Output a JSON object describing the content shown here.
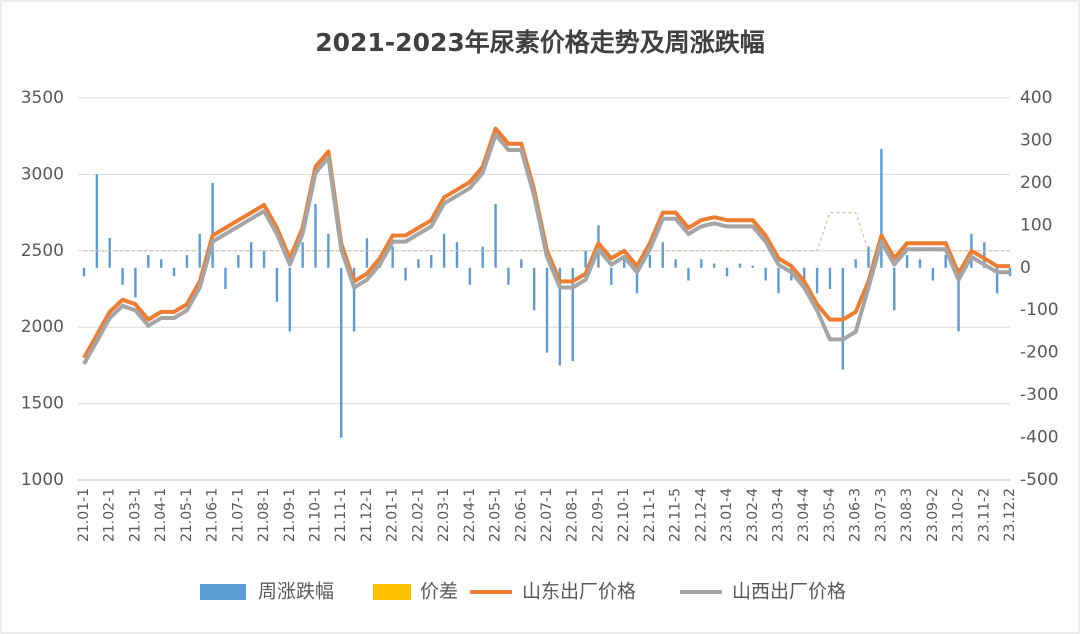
{
  "chart_data": {
    "type": "bar-line",
    "title": "2021-2023年尿素价格走势及周涨跌幅",
    "categories": [
      "21.01-1",
      null,
      "21.02-1",
      null,
      "21.03-1",
      null,
      "21.04-1",
      null,
      "21.05-1",
      null,
      "21.06-1",
      null,
      "21.07-1",
      null,
      "21.08-1",
      null,
      "21.09-1",
      null,
      "21.10-1",
      null,
      "21.11-1",
      null,
      "21.12-1",
      null,
      "22.01-1",
      null,
      "22.02-1",
      null,
      "22.03-1",
      null,
      "22.04-1",
      null,
      "22.05-1",
      null,
      "22.06-1",
      null,
      "22.07-1",
      null,
      "22.08-1",
      null,
      "22.09-1",
      null,
      "22.10-1",
      null,
      "22.11-1",
      null,
      "22.11-5",
      null,
      "22.12-4",
      null,
      "23.01-4",
      null,
      "23.02-4",
      null,
      "23.03-4",
      null,
      "23.04-4",
      null,
      "23.05-4",
      null,
      "23.06-3",
      null,
      "23.07-3",
      null,
      "23.08-3",
      null,
      "23.09-2",
      null,
      "23.10-2",
      null,
      "23.11-2",
      null,
      "23.12.2"
    ],
    "series": [
      {
        "name": "周涨跌幅",
        "type": "bar",
        "axis": "y2",
        "color": "#5b9bd5",
        "values": [
          -20,
          220,
          70,
          -40,
          -70,
          30,
          20,
          -20,
          30,
          80,
          200,
          -50,
          30,
          60,
          40,
          -80,
          -150,
          60,
          150,
          80,
          -400,
          -150,
          70,
          30,
          50,
          -30,
          20,
          30,
          80,
          60,
          -40,
          50,
          150,
          -40,
          20,
          -100,
          -200,
          -230,
          -220,
          40,
          100,
          -40,
          30,
          -60,
          30,
          60,
          20,
          -30,
          20,
          10,
          -20,
          10,
          5,
          -30,
          -60,
          -30,
          -50,
          -60,
          -50,
          -240,
          20,
          50,
          280,
          -100,
          30,
          20,
          -30,
          30,
          -150,
          80,
          60,
          -60,
          -20
        ]
      },
      {
        "name": "价差",
        "type": "line",
        "axis": "y2",
        "color": "#ffc000",
        "values": [
          40,
          40,
          40,
          40,
          40,
          40,
          40,
          40,
          40,
          40,
          40,
          40,
          40,
          40,
          40,
          40,
          40,
          40,
          40,
          40,
          40,
          40,
          40,
          40,
          40,
          40,
          40,
          40,
          40,
          40,
          40,
          40,
          40,
          40,
          40,
          40,
          40,
          40,
          40,
          40,
          40,
          40,
          40,
          40,
          40,
          40,
          40,
          40,
          40,
          40,
          40,
          40,
          40,
          40,
          40,
          40,
          40,
          40,
          130,
          130,
          130,
          40,
          40,
          40,
          40,
          40,
          40,
          40,
          40,
          40,
          40,
          40,
          40
        ]
      },
      {
        "name": "山东出厂价格",
        "type": "line",
        "color": "#ed7d31",
        "values": [
          1800,
          1950,
          2100,
          2180,
          2150,
          2050,
          2100,
          2100,
          2150,
          2300,
          2600,
          2650,
          2700,
          2750,
          2800,
          2650,
          2450,
          2650,
          3050,
          3150,
          2550,
          2300,
          2350,
          2450,
          2600,
          2600,
          2650,
          2700,
          2850,
          2900,
          2950,
          3050,
          3300,
          3200,
          3200,
          2900,
          2500,
          2300,
          2300,
          2350,
          2550,
          2450,
          2500,
          2400,
          2550,
          2750,
          2750,
          2650,
          2700,
          2720,
          2700,
          2700,
          2700,
          2600,
          2450,
          2400,
          2300,
          2150,
          2050,
          2050,
          2100,
          2300,
          2600,
          2450,
          2550,
          2550,
          2550,
          2550,
          2350,
          2500,
          2450,
          2400,
          2400
        ]
      },
      {
        "name": "山西出厂价格",
        "type": "line",
        "color": "#a5a5a5",
        "values": [
          1760,
          1910,
          2060,
          2140,
          2110,
          2010,
          2060,
          2060,
          2110,
          2260,
          2560,
          2610,
          2660,
          2710,
          2760,
          2610,
          2410,
          2610,
          3010,
          3110,
          2510,
          2260,
          2310,
          2410,
          2560,
          2560,
          2610,
          2660,
          2810,
          2860,
          2910,
          3010,
          3260,
          3160,
          3160,
          2860,
          2460,
          2260,
          2260,
          2310,
          2510,
          2410,
          2460,
          2360,
          2510,
          2710,
          2710,
          2610,
          2660,
          2680,
          2660,
          2660,
          2660,
          2560,
          2410,
          2360,
          2260,
          2110,
          1920,
          1920,
          1970,
          2260,
          2560,
          2410,
          2510,
          2510,
          2510,
          2510,
          2310,
          2460,
          2410,
          2360,
          2360
        ]
      }
    ],
    "ylim": [
      1000,
      3500
    ],
    "yticks": [
      1000,
      1500,
      2000,
      2500,
      3000,
      3500
    ],
    "y2lim": [
      -500,
      400
    ],
    "y2ticks": [
      -500,
      -400,
      -300,
      -200,
      -100,
      0,
      100,
      200,
      300,
      400
    ],
    "grid": true,
    "legend": "bottom"
  }
}
